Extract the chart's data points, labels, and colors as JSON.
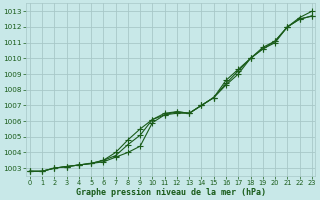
{
  "title": "Graphe pression niveau de la mer (hPa)",
  "bg_color": "#c8e8e8",
  "grid_color": "#a8c8c8",
  "line_color": "#1a5c1a",
  "marker_color": "#1a5c1a",
  "label_color": "#1a5c1a",
  "ylim": [
    1002.5,
    1013.5
  ],
  "xlim": [
    -0.3,
    23.3
  ],
  "yticks": [
    1003,
    1004,
    1005,
    1006,
    1007,
    1008,
    1009,
    1010,
    1011,
    1012,
    1013
  ],
  "xticks": [
    0,
    1,
    2,
    3,
    4,
    5,
    6,
    7,
    8,
    9,
    10,
    11,
    12,
    13,
    14,
    15,
    16,
    17,
    18,
    19,
    20,
    21,
    22,
    23
  ],
  "series1": [
    1002.8,
    1002.8,
    1003.0,
    1003.1,
    1003.2,
    1003.3,
    1003.4,
    1003.7,
    1004.0,
    1004.4,
    1005.9,
    1006.4,
    1006.5,
    1006.5,
    1007.0,
    1007.5,
    1008.6,
    1009.3,
    1010.0,
    1010.7,
    1011.1,
    1012.0,
    1012.5,
    1012.7
  ],
  "series2": [
    1002.8,
    1002.8,
    1003.0,
    1003.1,
    1003.2,
    1003.3,
    1003.5,
    1003.8,
    1004.5,
    1005.1,
    1006.1,
    1006.4,
    1006.6,
    1006.5,
    1007.0,
    1007.5,
    1008.4,
    1009.2,
    1010.0,
    1010.6,
    1011.1,
    1012.0,
    1012.5,
    1012.7
  ],
  "series3": [
    1002.8,
    1002.8,
    1003.0,
    1003.1,
    1003.2,
    1003.3,
    1003.5,
    1004.0,
    1004.8,
    1005.5,
    1006.1,
    1006.5,
    1006.6,
    1006.5,
    1007.0,
    1007.5,
    1008.3,
    1009.0,
    1010.0,
    1010.6,
    1011.0,
    1012.0,
    1012.6,
    1013.0
  ]
}
